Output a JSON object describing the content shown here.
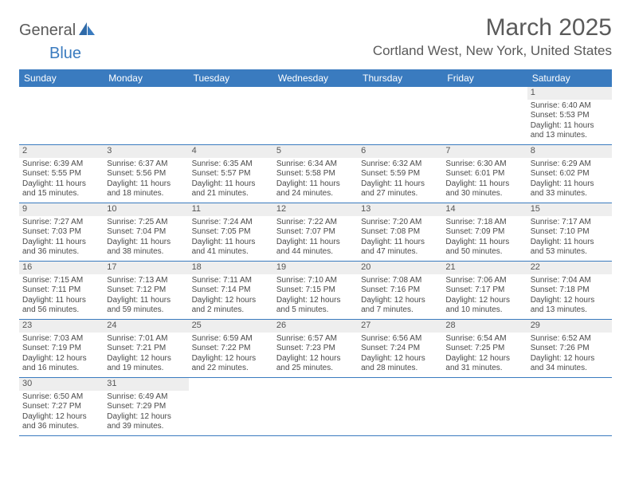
{
  "brand": {
    "part1": "General",
    "part2": "Blue"
  },
  "header": {
    "month_year": "March 2025",
    "location": "Cortland West, New York, United States"
  },
  "colors": {
    "header_bg": "#3a7bbf",
    "header_text": "#ffffff",
    "daynum_bg": "#eeeeee",
    "text": "#4a4a4a",
    "title_text": "#5a5a5a"
  },
  "day_names": [
    "Sunday",
    "Monday",
    "Tuesday",
    "Wednesday",
    "Thursday",
    "Friday",
    "Saturday"
  ],
  "weeks": [
    [
      {
        "n": "",
        "empty": true
      },
      {
        "n": "",
        "empty": true
      },
      {
        "n": "",
        "empty": true
      },
      {
        "n": "",
        "empty": true
      },
      {
        "n": "",
        "empty": true
      },
      {
        "n": "",
        "empty": true
      },
      {
        "n": "1",
        "sr": "Sunrise: 6:40 AM",
        "ss": "Sunset: 5:53 PM",
        "dl": "Daylight: 11 hours and 13 minutes."
      }
    ],
    [
      {
        "n": "2",
        "sr": "Sunrise: 6:39 AM",
        "ss": "Sunset: 5:55 PM",
        "dl": "Daylight: 11 hours and 15 minutes."
      },
      {
        "n": "3",
        "sr": "Sunrise: 6:37 AM",
        "ss": "Sunset: 5:56 PM",
        "dl": "Daylight: 11 hours and 18 minutes."
      },
      {
        "n": "4",
        "sr": "Sunrise: 6:35 AM",
        "ss": "Sunset: 5:57 PM",
        "dl": "Daylight: 11 hours and 21 minutes."
      },
      {
        "n": "5",
        "sr": "Sunrise: 6:34 AM",
        "ss": "Sunset: 5:58 PM",
        "dl": "Daylight: 11 hours and 24 minutes."
      },
      {
        "n": "6",
        "sr": "Sunrise: 6:32 AM",
        "ss": "Sunset: 5:59 PM",
        "dl": "Daylight: 11 hours and 27 minutes."
      },
      {
        "n": "7",
        "sr": "Sunrise: 6:30 AM",
        "ss": "Sunset: 6:01 PM",
        "dl": "Daylight: 11 hours and 30 minutes."
      },
      {
        "n": "8",
        "sr": "Sunrise: 6:29 AM",
        "ss": "Sunset: 6:02 PM",
        "dl": "Daylight: 11 hours and 33 minutes."
      }
    ],
    [
      {
        "n": "9",
        "sr": "Sunrise: 7:27 AM",
        "ss": "Sunset: 7:03 PM",
        "dl": "Daylight: 11 hours and 36 minutes."
      },
      {
        "n": "10",
        "sr": "Sunrise: 7:25 AM",
        "ss": "Sunset: 7:04 PM",
        "dl": "Daylight: 11 hours and 38 minutes."
      },
      {
        "n": "11",
        "sr": "Sunrise: 7:24 AM",
        "ss": "Sunset: 7:05 PM",
        "dl": "Daylight: 11 hours and 41 minutes."
      },
      {
        "n": "12",
        "sr": "Sunrise: 7:22 AM",
        "ss": "Sunset: 7:07 PM",
        "dl": "Daylight: 11 hours and 44 minutes."
      },
      {
        "n": "13",
        "sr": "Sunrise: 7:20 AM",
        "ss": "Sunset: 7:08 PM",
        "dl": "Daylight: 11 hours and 47 minutes."
      },
      {
        "n": "14",
        "sr": "Sunrise: 7:18 AM",
        "ss": "Sunset: 7:09 PM",
        "dl": "Daylight: 11 hours and 50 minutes."
      },
      {
        "n": "15",
        "sr": "Sunrise: 7:17 AM",
        "ss": "Sunset: 7:10 PM",
        "dl": "Daylight: 11 hours and 53 minutes."
      }
    ],
    [
      {
        "n": "16",
        "sr": "Sunrise: 7:15 AM",
        "ss": "Sunset: 7:11 PM",
        "dl": "Daylight: 11 hours and 56 minutes."
      },
      {
        "n": "17",
        "sr": "Sunrise: 7:13 AM",
        "ss": "Sunset: 7:12 PM",
        "dl": "Daylight: 11 hours and 59 minutes."
      },
      {
        "n": "18",
        "sr": "Sunrise: 7:11 AM",
        "ss": "Sunset: 7:14 PM",
        "dl": "Daylight: 12 hours and 2 minutes."
      },
      {
        "n": "19",
        "sr": "Sunrise: 7:10 AM",
        "ss": "Sunset: 7:15 PM",
        "dl": "Daylight: 12 hours and 5 minutes."
      },
      {
        "n": "20",
        "sr": "Sunrise: 7:08 AM",
        "ss": "Sunset: 7:16 PM",
        "dl": "Daylight: 12 hours and 7 minutes."
      },
      {
        "n": "21",
        "sr": "Sunrise: 7:06 AM",
        "ss": "Sunset: 7:17 PM",
        "dl": "Daylight: 12 hours and 10 minutes."
      },
      {
        "n": "22",
        "sr": "Sunrise: 7:04 AM",
        "ss": "Sunset: 7:18 PM",
        "dl": "Daylight: 12 hours and 13 minutes."
      }
    ],
    [
      {
        "n": "23",
        "sr": "Sunrise: 7:03 AM",
        "ss": "Sunset: 7:19 PM",
        "dl": "Daylight: 12 hours and 16 minutes."
      },
      {
        "n": "24",
        "sr": "Sunrise: 7:01 AM",
        "ss": "Sunset: 7:21 PM",
        "dl": "Daylight: 12 hours and 19 minutes."
      },
      {
        "n": "25",
        "sr": "Sunrise: 6:59 AM",
        "ss": "Sunset: 7:22 PM",
        "dl": "Daylight: 12 hours and 22 minutes."
      },
      {
        "n": "26",
        "sr": "Sunrise: 6:57 AM",
        "ss": "Sunset: 7:23 PM",
        "dl": "Daylight: 12 hours and 25 minutes."
      },
      {
        "n": "27",
        "sr": "Sunrise: 6:56 AM",
        "ss": "Sunset: 7:24 PM",
        "dl": "Daylight: 12 hours and 28 minutes."
      },
      {
        "n": "28",
        "sr": "Sunrise: 6:54 AM",
        "ss": "Sunset: 7:25 PM",
        "dl": "Daylight: 12 hours and 31 minutes."
      },
      {
        "n": "29",
        "sr": "Sunrise: 6:52 AM",
        "ss": "Sunset: 7:26 PM",
        "dl": "Daylight: 12 hours and 34 minutes."
      }
    ],
    [
      {
        "n": "30",
        "sr": "Sunrise: 6:50 AM",
        "ss": "Sunset: 7:27 PM",
        "dl": "Daylight: 12 hours and 36 minutes."
      },
      {
        "n": "31",
        "sr": "Sunrise: 6:49 AM",
        "ss": "Sunset: 7:29 PM",
        "dl": "Daylight: 12 hours and 39 minutes."
      },
      {
        "n": "",
        "empty": true
      },
      {
        "n": "",
        "empty": true
      },
      {
        "n": "",
        "empty": true
      },
      {
        "n": "",
        "empty": true
      },
      {
        "n": "",
        "empty": true
      }
    ]
  ]
}
